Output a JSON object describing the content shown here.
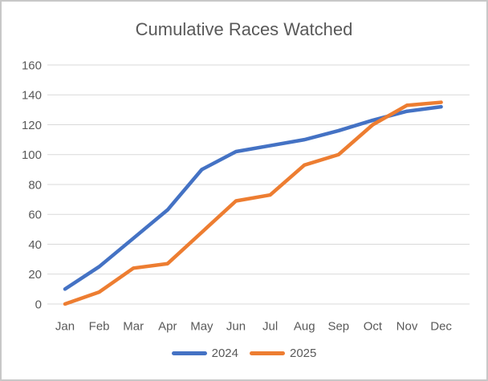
{
  "chart": {
    "title": "Cumulative Races Watched"
  },
  "chart_data": {
    "type": "line",
    "title": "Cumulative Races Watched",
    "categories": [
      "Jan",
      "Feb",
      "Mar",
      "Apr",
      "May",
      "Jun",
      "Jul",
      "Aug",
      "Sep",
      "Oct",
      "Nov",
      "Dec"
    ],
    "series": [
      {
        "name": "2024",
        "color": "#4472C4",
        "values": [
          10,
          25,
          44,
          63,
          90,
          102,
          106,
          110,
          116,
          123,
          129,
          132
        ]
      },
      {
        "name": "2025",
        "color": "#ED7D31",
        "values": [
          0,
          8,
          24,
          27,
          48,
          69,
          73,
          93,
          100,
          120,
          133,
          135
        ]
      }
    ],
    "xlabel": "",
    "ylabel": "",
    "ylim": [
      0,
      160
    ],
    "ytick_step": 20,
    "grid": "horizontal",
    "gridline_color": "#D9D9D9",
    "text_color": "#595959",
    "legend_position": "bottom"
  }
}
